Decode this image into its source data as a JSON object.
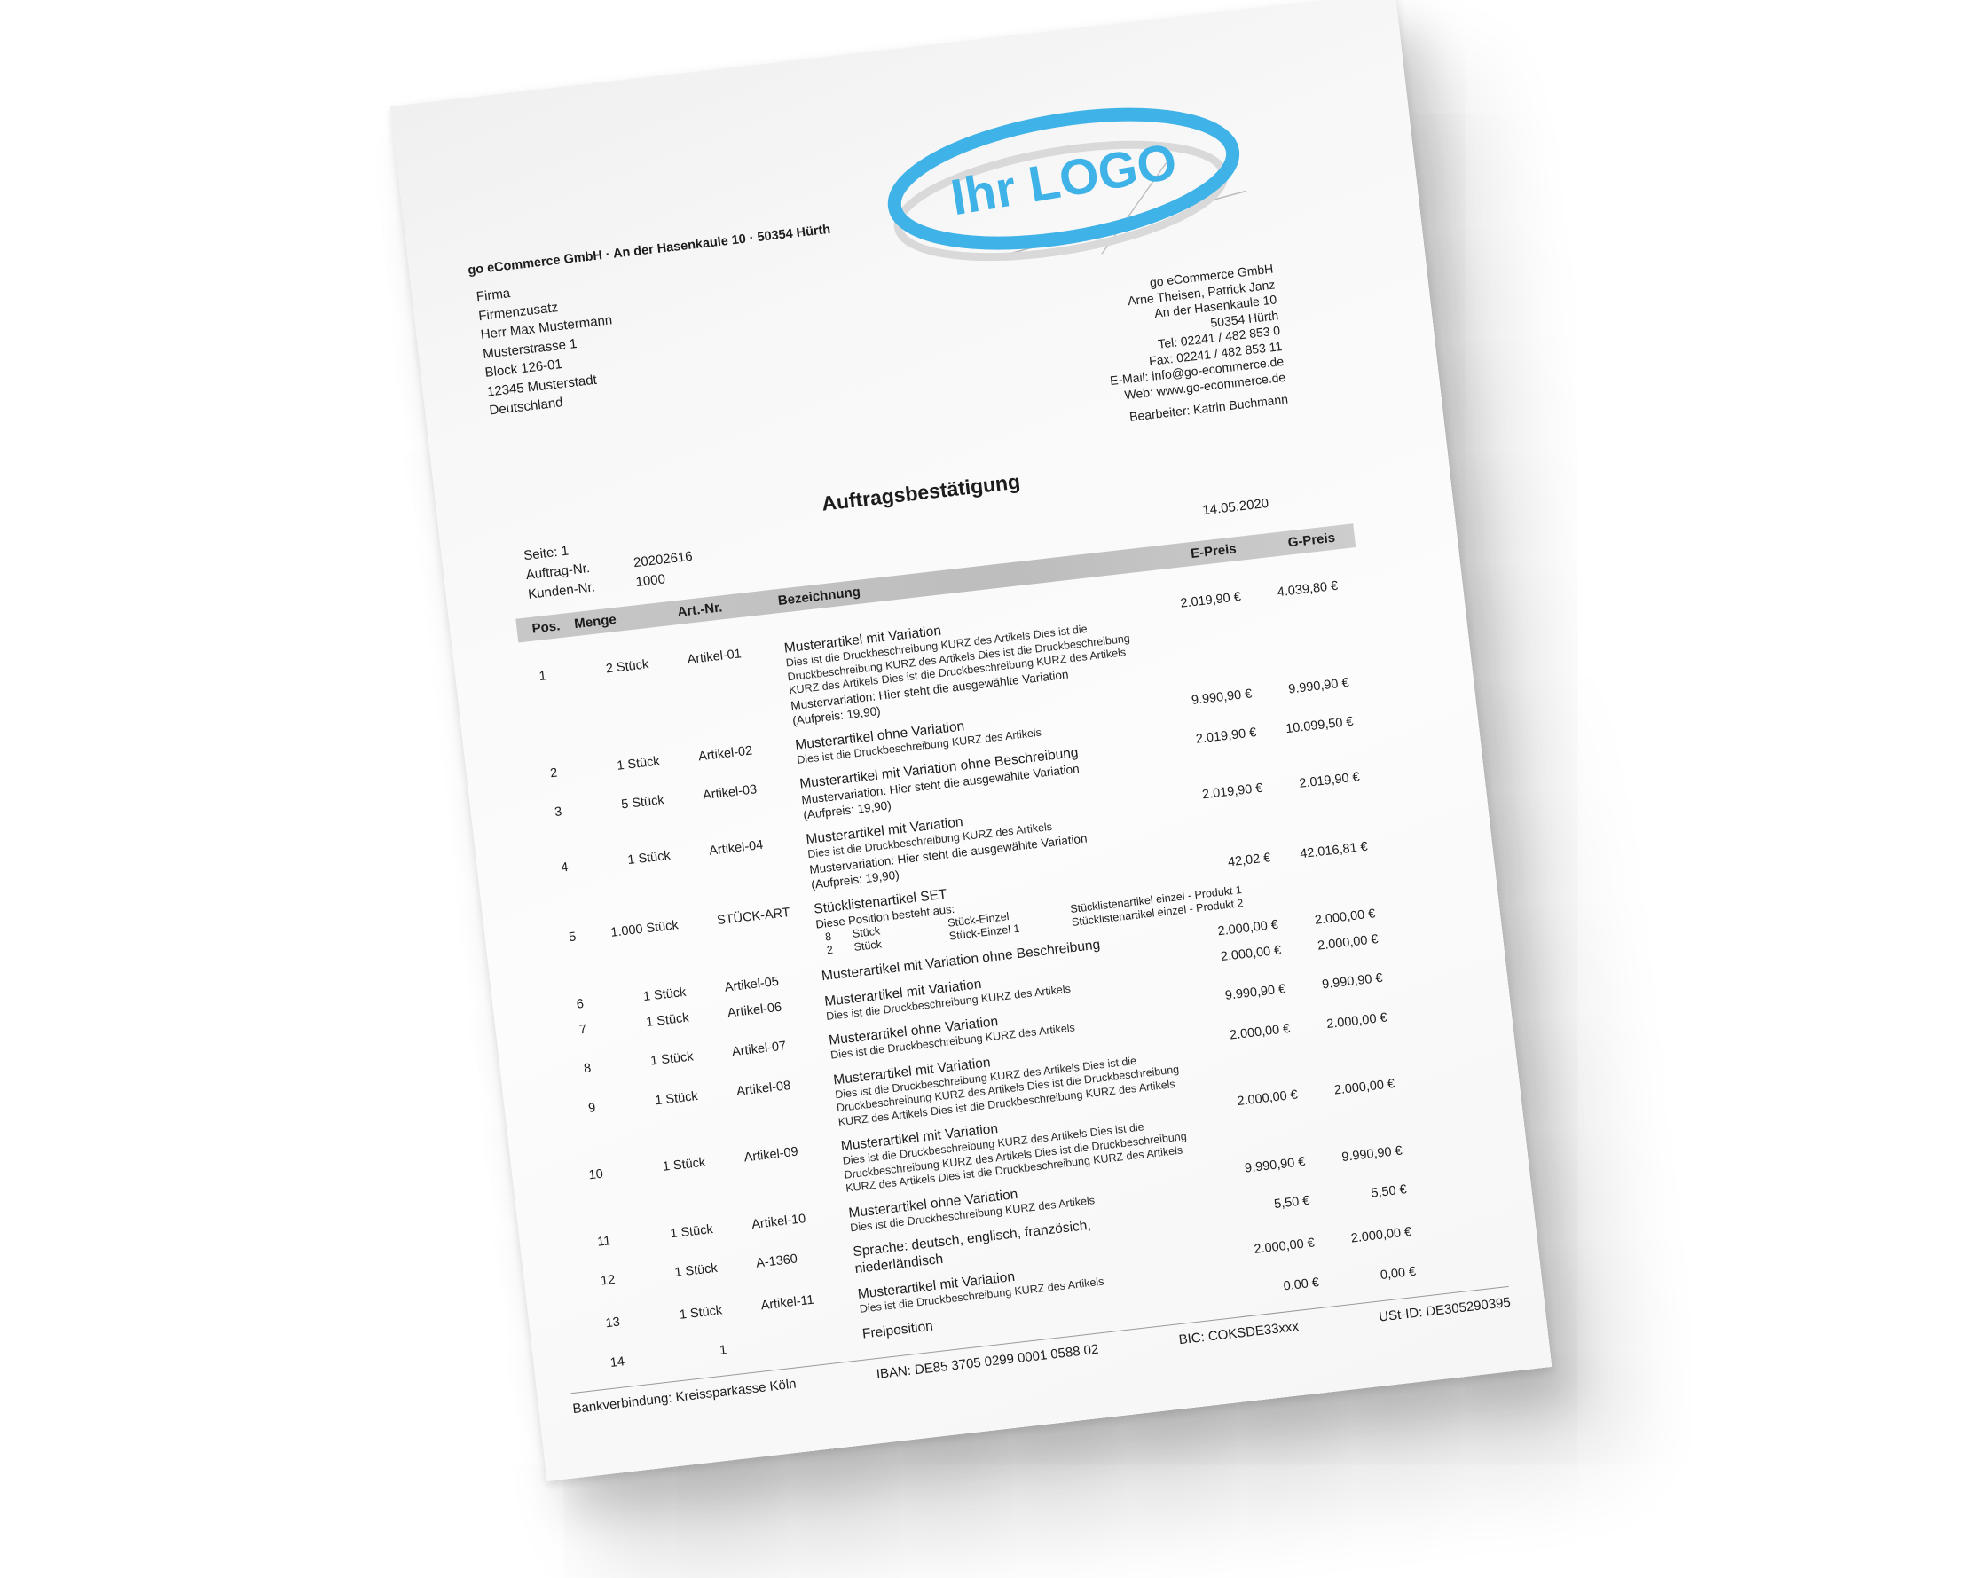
{
  "colors": {
    "accent_blue": "#3fb2e8",
    "band_gray": "#c4c4c4"
  },
  "logo": {
    "text": "Ihr LOGO"
  },
  "sender_line": "go eCommerce GmbH · An der Hasenkaule 10 · 50354 Hürth",
  "recipient": {
    "lines": [
      "Firma",
      "Firmenzusatz",
      "Herr Max Mustermann",
      "Musterstrasse 1",
      "Block 126-01",
      "12345 Musterstadt",
      "Deutschland"
    ]
  },
  "company": {
    "lines": [
      "go eCommerce GmbH",
      "Arne Theisen, Patrick Janz",
      "An der Hasenkaule 10",
      "50354 Hürth",
      "Tel: 02241 / 482 853 0",
      "Fax: 02241 / 482 853 11",
      "E-Mail: info@go-ecommerce.de",
      "Web: www.go-ecommerce.de"
    ],
    "bearbeiter": "Bearbeiter: Katrin Buchmann"
  },
  "title": "Auftragsbestätigung",
  "date": "14.05.2020",
  "meta": {
    "seite_label": "Seite:",
    "seite_value": "1",
    "auftrag_label": "Auftrag-Nr.",
    "auftrag_value": "20202616",
    "kunden_label": "Kunden-Nr.",
    "kunden_value": "1000"
  },
  "table": {
    "headers": {
      "pos": "Pos.",
      "menge": "Menge",
      "artnr": "Art.-Nr.",
      "bezeichnung": "Bezeichnung",
      "epreis": "E-Preis",
      "gpreis": "G-Preis"
    },
    "rows": [
      {
        "pos": "1",
        "menge": "2 Stück",
        "artnr": "Artikel-01",
        "title": "Musterartikel mit Variation",
        "desc": [
          "Dies ist die Druckbeschreibung KURZ des Artikels Dies ist die",
          "Druckbeschreibung KURZ des Artikels Dies ist die Druckbeschreibung",
          "KURZ des Artikels Dies ist die Druckbeschreibung KURZ des Artikels"
        ],
        "variation": [
          "Mustervariation: Hier steht die ausgewählte Variation",
          "(Aufpreis: 19,90)"
        ],
        "eprice": "2.019,90 €",
        "gprice": "4.039,80 €"
      },
      {
        "pos": "2",
        "menge": "1 Stück",
        "artnr": "Artikel-02",
        "title": "Musterartikel ohne Variation",
        "desc": [
          "Dies ist die Druckbeschreibung KURZ des Artikels"
        ],
        "eprice": "9.990,90 €",
        "gprice": "9.990,90 €"
      },
      {
        "pos": "3",
        "menge": "5 Stück",
        "artnr": "Artikel-03",
        "title": "Musterartikel mit Variation ohne Beschreibung",
        "variation": [
          "Mustervariation: Hier steht die ausgewählte Variation",
          "(Aufpreis: 19,90)"
        ],
        "eprice": "2.019,90 €",
        "gprice": "10.099,50 €"
      },
      {
        "pos": "4",
        "menge": "1 Stück",
        "artnr": "Artikel-04",
        "title": "Musterartikel mit Variation",
        "desc": [
          "Dies ist die Druckbeschreibung KURZ des Artikels"
        ],
        "variation": [
          "Mustervariation: Hier steht die ausgewählte Variation",
          "(Aufpreis: 19,90)"
        ],
        "eprice": "2.019,90 €",
        "gprice": "2.019,90 €"
      },
      {
        "pos": "5",
        "menge": "1.000 Stück",
        "artnr": "STÜCK-ART",
        "title": "Stücklistenartikel SET",
        "subtitle": "Diese Position besteht aus:",
        "components": [
          {
            "qty": "8",
            "unit": "Stück",
            "name": "Stück-Einzel",
            "label": "Stücklistenartikel einzel - Produkt 1"
          },
          {
            "qty": "2",
            "unit": "Stück",
            "name": "Stück-Einzel 1",
            "label": "Stücklistenartikel einzel - Produkt 2"
          }
        ],
        "eprice": "42,02 €",
        "gprice": "42.016,81 €"
      },
      {
        "pos": "6",
        "menge": "1 Stück",
        "artnr": "Artikel-05",
        "title": "Musterartikel mit Variation ohne Beschreibung",
        "eprice": "2.000,00 €",
        "gprice": "2.000,00 €"
      },
      {
        "pos": "7",
        "menge": "1 Stück",
        "artnr": "Artikel-06",
        "title": "Musterartikel mit Variation",
        "desc": [
          "Dies ist die Druckbeschreibung KURZ des Artikels"
        ],
        "eprice": "2.000,00 €",
        "gprice": "2.000,00 €"
      },
      {
        "pos": "8",
        "menge": "1 Stück",
        "artnr": "Artikel-07",
        "title": "Musterartikel ohne Variation",
        "desc": [
          "Dies ist die Druckbeschreibung KURZ des Artikels"
        ],
        "eprice": "9.990,90 €",
        "gprice": "9.990,90 €"
      },
      {
        "pos": "9",
        "menge": "1 Stück",
        "artnr": "Artikel-08",
        "title": "Musterartikel mit Variation",
        "desc": [
          "Dies ist die Druckbeschreibung KURZ des Artikels Dies ist die",
          "Druckbeschreibung KURZ des Artikels Dies ist die Druckbeschreibung",
          "KURZ des Artikels Dies ist die Druckbeschreibung KURZ des Artikels"
        ],
        "eprice": "2.000,00 €",
        "gprice": "2.000,00 €"
      },
      {
        "pos": "10",
        "menge": "1 Stück",
        "artnr": "Artikel-09",
        "title": "Musterartikel mit Variation",
        "desc": [
          "Dies ist die Druckbeschreibung KURZ des Artikels Dies ist die",
          "Druckbeschreibung KURZ des Artikels Dies ist die Druckbeschreibung",
          "KURZ des Artikels Dies ist die Druckbeschreibung KURZ des Artikels"
        ],
        "eprice": "2.000,00 €",
        "gprice": "2.000,00 €"
      },
      {
        "pos": "11",
        "menge": "1 Stück",
        "artnr": "Artikel-10",
        "title": "Musterartikel ohne Variation",
        "desc": [
          "Dies ist die Druckbeschreibung KURZ des Artikels"
        ],
        "eprice": "9.990,90 €",
        "gprice": "9.990,90 €"
      },
      {
        "pos": "12",
        "menge": "1 Stück",
        "artnr": "A-1360",
        "title": "Sprache: deutsch, englisch, französich,\nniederländisch",
        "eprice": "5,50 €",
        "gprice": "5,50 €"
      },
      {
        "pos": "13",
        "menge": "1 Stück",
        "artnr": "Artikel-11",
        "title": "Musterartikel mit Variation",
        "desc": [
          "Dies ist die Druckbeschreibung KURZ des Artikels"
        ],
        "eprice": "2.000,00 €",
        "gprice": "2.000,00 €"
      },
      {
        "pos": "14",
        "menge": "1",
        "artnr": "",
        "title": "Freiposition",
        "eprice": "0,00 €",
        "gprice": "0,00 €"
      }
    ]
  },
  "footer": {
    "bank": "Bankverbindung: Kreissparkasse Köln",
    "iban": "IBAN: DE85 3705 0299 0001 0588 02",
    "bic": "BIC: COKSDE33xxx",
    "ustid": "USt-ID: DE305290395"
  }
}
